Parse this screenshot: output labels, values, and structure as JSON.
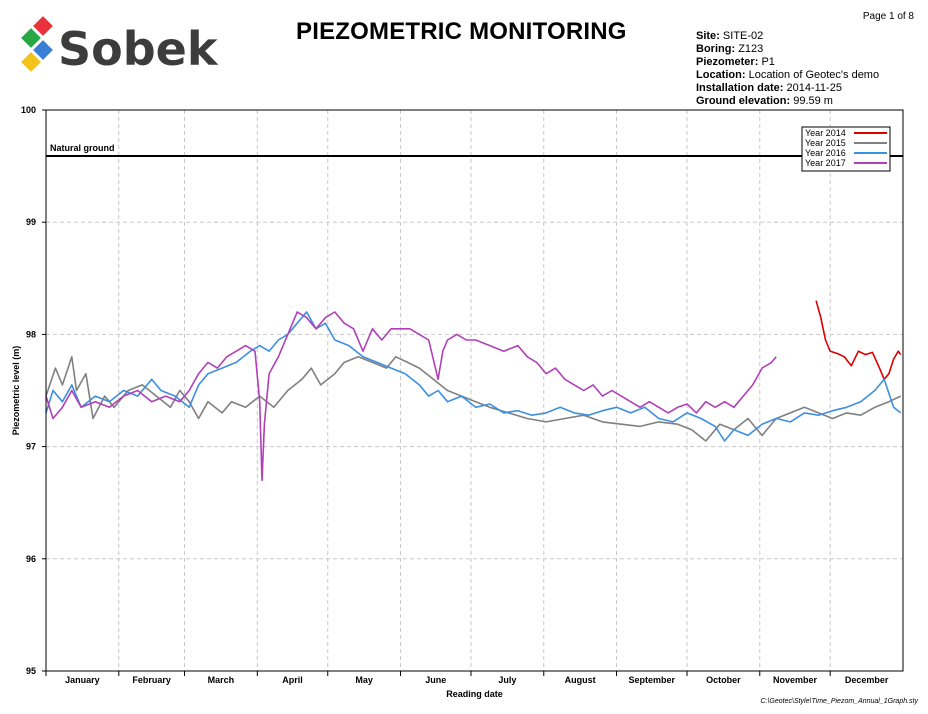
{
  "page": {
    "number_label": "Page 1 of 8",
    "footer_path": "C:\\Geotec\\Style\\Time_Piezom_Annual_1Graph.sty"
  },
  "brand": {
    "name": "Sobek",
    "colors": [
      "#e8323c",
      "#27a845",
      "#3a7fd5",
      "#f2c318"
    ],
    "text_color": "#3c3c3c"
  },
  "title": "PIEZOMETRIC MONITORING",
  "meta": [
    {
      "label": "Site",
      "value": "SITE-02"
    },
    {
      "label": "Boring",
      "value": "Z123"
    },
    {
      "label": "Piezometer",
      "value": "P1"
    },
    {
      "label": "Location",
      "value": "Location of Geotec's demo"
    },
    {
      "label": "Installation date",
      "value": "2014-11-25"
    },
    {
      "label": "Ground elevation",
      "value": "99.59 m"
    }
  ],
  "chart_data": {
    "type": "line",
    "xlabel": "Reading date",
    "ylabel": "Piezometric level (m)",
    "ylim": [
      95,
      100
    ],
    "yticks": [
      95,
      96,
      97,
      98,
      99,
      100
    ],
    "xlim": [
      1,
      366
    ],
    "month_labels": [
      "January",
      "February",
      "March",
      "April",
      "May",
      "June",
      "July",
      "August",
      "September",
      "October",
      "November",
      "December"
    ],
    "grid": true,
    "legend_position": "top-right",
    "reference_line": {
      "label": "Natural ground",
      "value": 99.59
    },
    "series": [
      {
        "name": "Year 2014",
        "color": "#dd0000",
        "points": [
          [
            329,
            98.3
          ],
          [
            331,
            98.15
          ],
          [
            333,
            97.95
          ],
          [
            335,
            97.85
          ],
          [
            338,
            97.83
          ],
          [
            341,
            97.8
          ],
          [
            344,
            97.72
          ],
          [
            347,
            97.85
          ],
          [
            350,
            97.82
          ],
          [
            353,
            97.84
          ],
          [
            356,
            97.7
          ],
          [
            358,
            97.6
          ],
          [
            360,
            97.65
          ],
          [
            362,
            97.78
          ],
          [
            364,
            97.85
          ],
          [
            365,
            97.82
          ]
        ]
      },
      {
        "name": "Year 2015",
        "color": "#808080",
        "points": [
          [
            1,
            97.45
          ],
          [
            5,
            97.7
          ],
          [
            8,
            97.55
          ],
          [
            12,
            97.8
          ],
          [
            14,
            97.5
          ],
          [
            18,
            97.65
          ],
          [
            21,
            97.25
          ],
          [
            26,
            97.45
          ],
          [
            30,
            97.35
          ],
          [
            36,
            97.5
          ],
          [
            42,
            97.55
          ],
          [
            48,
            97.45
          ],
          [
            54,
            97.35
          ],
          [
            58,
            97.5
          ],
          [
            62,
            97.4
          ],
          [
            66,
            97.25
          ],
          [
            70,
            97.4
          ],
          [
            76,
            97.3
          ],
          [
            80,
            97.4
          ],
          [
            86,
            97.35
          ],
          [
            92,
            97.45
          ],
          [
            98,
            97.35
          ],
          [
            104,
            97.5
          ],
          [
            110,
            97.6
          ],
          [
            114,
            97.7
          ],
          [
            118,
            97.55
          ],
          [
            124,
            97.65
          ],
          [
            128,
            97.75
          ],
          [
            134,
            97.8
          ],
          [
            140,
            97.75
          ],
          [
            146,
            97.7
          ],
          [
            150,
            97.8
          ],
          [
            155,
            97.75
          ],
          [
            160,
            97.7
          ],
          [
            166,
            97.6
          ],
          [
            172,
            97.5
          ],
          [
            178,
            97.45
          ],
          [
            184,
            97.4
          ],
          [
            190,
            97.35
          ],
          [
            198,
            97.3
          ],
          [
            206,
            97.25
          ],
          [
            214,
            97.22
          ],
          [
            222,
            97.25
          ],
          [
            230,
            97.28
          ],
          [
            238,
            97.22
          ],
          [
            246,
            97.2
          ],
          [
            254,
            97.18
          ],
          [
            262,
            97.22
          ],
          [
            270,
            97.2
          ],
          [
            276,
            97.15
          ],
          [
            282,
            97.05
          ],
          [
            288,
            97.2
          ],
          [
            294,
            97.15
          ],
          [
            300,
            97.25
          ],
          [
            306,
            97.1
          ],
          [
            312,
            97.25
          ],
          [
            318,
            97.3
          ],
          [
            324,
            97.35
          ],
          [
            330,
            97.3
          ],
          [
            336,
            97.25
          ],
          [
            342,
            97.3
          ],
          [
            348,
            97.28
          ],
          [
            354,
            97.35
          ],
          [
            360,
            97.4
          ],
          [
            365,
            97.45
          ]
        ]
      },
      {
        "name": "Year 2016",
        "color": "#3d8fe0",
        "points": [
          [
            1,
            97.3
          ],
          [
            4,
            97.5
          ],
          [
            8,
            97.4
          ],
          [
            12,
            97.55
          ],
          [
            16,
            97.35
          ],
          [
            22,
            97.45
          ],
          [
            28,
            97.4
          ],
          [
            34,
            97.5
          ],
          [
            40,
            97.45
          ],
          [
            46,
            97.6
          ],
          [
            50,
            97.5
          ],
          [
            56,
            97.45
          ],
          [
            62,
            97.35
          ],
          [
            66,
            97.55
          ],
          [
            70,
            97.65
          ],
          [
            76,
            97.7
          ],
          [
            82,
            97.75
          ],
          [
            88,
            97.85
          ],
          [
            92,
            97.9
          ],
          [
            96,
            97.85
          ],
          [
            100,
            97.95
          ],
          [
            104,
            98.0
          ],
          [
            108,
            98.1
          ],
          [
            112,
            98.2
          ],
          [
            116,
            98.05
          ],
          [
            120,
            98.1
          ],
          [
            124,
            97.95
          ],
          [
            130,
            97.9
          ],
          [
            136,
            97.8
          ],
          [
            142,
            97.75
          ],
          [
            148,
            97.7
          ],
          [
            154,
            97.65
          ],
          [
            160,
            97.55
          ],
          [
            164,
            97.45
          ],
          [
            168,
            97.5
          ],
          [
            172,
            97.4
          ],
          [
            178,
            97.45
          ],
          [
            184,
            97.35
          ],
          [
            190,
            97.38
          ],
          [
            196,
            97.3
          ],
          [
            202,
            97.32
          ],
          [
            208,
            97.28
          ],
          [
            214,
            97.3
          ],
          [
            220,
            97.35
          ],
          [
            226,
            97.3
          ],
          [
            232,
            97.28
          ],
          [
            238,
            97.32
          ],
          [
            244,
            97.35
          ],
          [
            250,
            97.3
          ],
          [
            256,
            97.35
          ],
          [
            262,
            97.25
          ],
          [
            268,
            97.22
          ],
          [
            274,
            97.3
          ],
          [
            280,
            97.25
          ],
          [
            286,
            97.18
          ],
          [
            290,
            97.05
          ],
          [
            294,
            97.15
          ],
          [
            300,
            97.1
          ],
          [
            306,
            97.2
          ],
          [
            312,
            97.25
          ],
          [
            318,
            97.22
          ],
          [
            324,
            97.3
          ],
          [
            330,
            97.28
          ],
          [
            336,
            97.32
          ],
          [
            342,
            97.35
          ],
          [
            348,
            97.4
          ],
          [
            354,
            97.5
          ],
          [
            358,
            97.6
          ],
          [
            362,
            97.35
          ],
          [
            365,
            97.3
          ]
        ]
      },
      {
        "name": "Year 2017",
        "color": "#b040b8",
        "points": [
          [
            1,
            97.45
          ],
          [
            4,
            97.25
          ],
          [
            8,
            97.35
          ],
          [
            12,
            97.5
          ],
          [
            16,
            97.35
          ],
          [
            22,
            97.4
          ],
          [
            28,
            97.35
          ],
          [
            34,
            97.45
          ],
          [
            40,
            97.5
          ],
          [
            46,
            97.4
          ],
          [
            52,
            97.45
          ],
          [
            58,
            97.4
          ],
          [
            62,
            97.5
          ],
          [
            66,
            97.65
          ],
          [
            70,
            97.75
          ],
          [
            74,
            97.7
          ],
          [
            78,
            97.8
          ],
          [
            82,
            97.85
          ],
          [
            86,
            97.9
          ],
          [
            90,
            97.85
          ],
          [
            92,
            97.4
          ],
          [
            93,
            96.7
          ],
          [
            94,
            97.2
          ],
          [
            96,
            97.65
          ],
          [
            100,
            97.8
          ],
          [
            104,
            98.0
          ],
          [
            108,
            98.2
          ],
          [
            112,
            98.15
          ],
          [
            116,
            98.05
          ],
          [
            120,
            98.15
          ],
          [
            124,
            98.2
          ],
          [
            128,
            98.1
          ],
          [
            132,
            98.05
          ],
          [
            136,
            97.85
          ],
          [
            138,
            97.95
          ],
          [
            140,
            98.05
          ],
          [
            144,
            97.95
          ],
          [
            148,
            98.05
          ],
          [
            152,
            98.05
          ],
          [
            156,
            98.05
          ],
          [
            160,
            98.0
          ],
          [
            164,
            97.95
          ],
          [
            168,
            97.6
          ],
          [
            170,
            97.85
          ],
          [
            172,
            97.95
          ],
          [
            176,
            98.0
          ],
          [
            180,
            97.95
          ],
          [
            184,
            97.95
          ],
          [
            190,
            97.9
          ],
          [
            196,
            97.85
          ],
          [
            202,
            97.9
          ],
          [
            206,
            97.8
          ],
          [
            210,
            97.75
          ],
          [
            214,
            97.65
          ],
          [
            218,
            97.7
          ],
          [
            222,
            97.6
          ],
          [
            226,
            97.55
          ],
          [
            230,
            97.5
          ],
          [
            234,
            97.55
          ],
          [
            238,
            97.45
          ],
          [
            242,
            97.5
          ],
          [
            246,
            97.45
          ],
          [
            250,
            97.4
          ],
          [
            254,
            97.35
          ],
          [
            258,
            97.4
          ],
          [
            262,
            97.35
          ],
          [
            266,
            97.3
          ],
          [
            270,
            97.35
          ],
          [
            274,
            97.38
          ],
          [
            278,
            97.3
          ],
          [
            282,
            97.4
          ],
          [
            286,
            97.35
          ],
          [
            290,
            97.4
          ],
          [
            294,
            97.35
          ],
          [
            298,
            97.45
          ],
          [
            302,
            97.55
          ],
          [
            306,
            97.7
          ],
          [
            310,
            97.75
          ],
          [
            312,
            97.8
          ]
        ]
      }
    ]
  }
}
